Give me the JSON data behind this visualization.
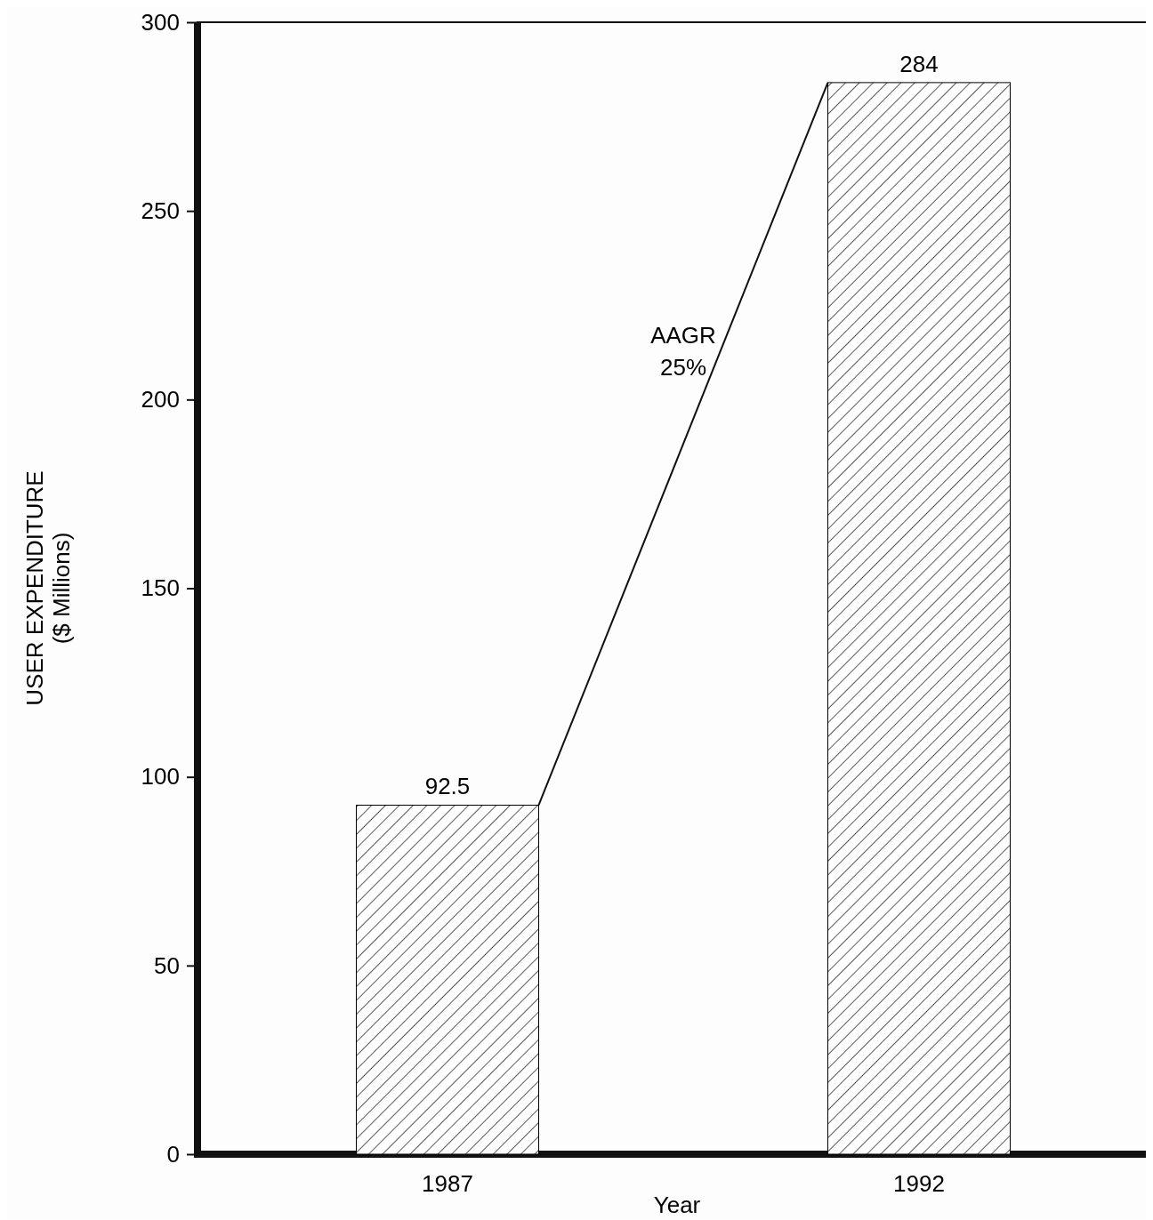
{
  "chart_data": {
    "type": "bar",
    "xlabel": "Year",
    "ylabel": "USER EXPENDITURE\n($ Millions)",
    "categories": [
      "1987",
      "1992"
    ],
    "values": [
      92.5,
      284
    ],
    "color": "#000000",
    "ylim": [
      0,
      300
    ],
    "yticks": [
      0,
      50,
      100,
      150,
      200,
      250,
      300
    ],
    "data_labels": true,
    "grid": false,
    "annotations": [
      "AAGR\n25%"
    ]
  }
}
